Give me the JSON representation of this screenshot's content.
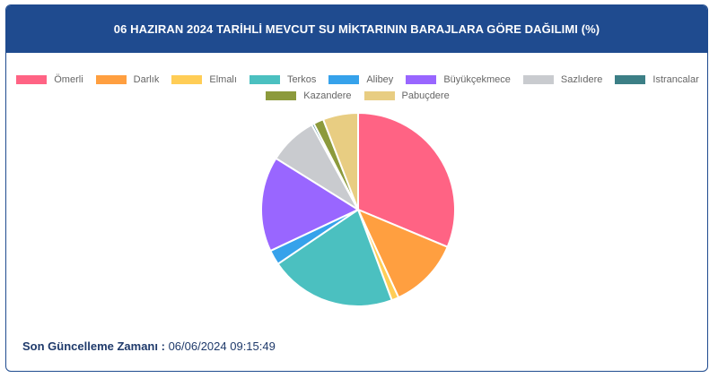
{
  "header": {
    "title": "06 HAZIRAN 2024 TARİHLİ MEVCUT SU MİKTARININ BARAJLARA GÖRE DAĞILIMI (%)"
  },
  "footer": {
    "label": "Son Güncelleme Zamanı :",
    "value": "06/06/2024 09:15:49"
  },
  "colors": {
    "header_bg": "#1f4b8f",
    "footer_text": "#1f3a6b"
  },
  "chart_data": {
    "type": "pie",
    "title": "06 HAZIRAN 2024 TARİHLİ MEVCUT SU MİKTARININ BARAJLARA GÖRE DAĞILIMI (%)",
    "legend_position": "top",
    "labels": [
      "Ömerli",
      "Darlık",
      "Elmalı",
      "Terkos",
      "Alibey",
      "Büyükçekmece",
      "Sazlıdere",
      "Istrancalar",
      "Kazandere",
      "Pabuçdere"
    ],
    "values": [
      31.5,
      11.9,
      1.2,
      21.3,
      2.5,
      16.0,
      8.2,
      0.4,
      1.7,
      5.9
    ],
    "colors": [
      "#ff6384",
      "#ff9f40",
      "#ffcd56",
      "#4bc0c0",
      "#36a2eb",
      "#9966ff",
      "#c9cbcf",
      "#3c7f86",
      "#8c9a3c",
      "#e8cd82"
    ]
  }
}
